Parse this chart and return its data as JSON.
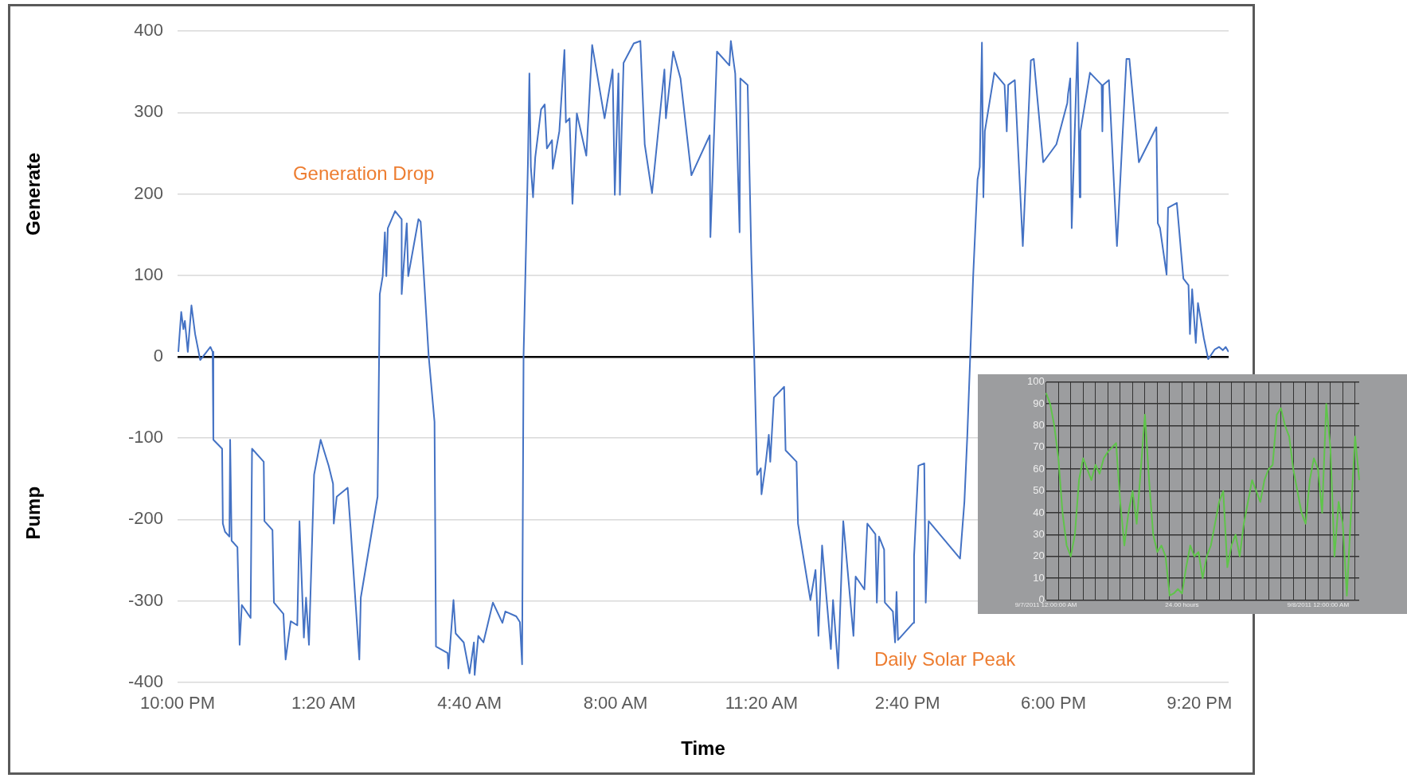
{
  "chart_data": [
    {
      "type": "line",
      "xlabel": "Time",
      "ylabel": "Generate",
      "xlim": [
        "2011-09-07T22:00",
        "2011-09-08T22:00"
      ],
      "ylim": [
        -400,
        400
      ],
      "xticks": [
        {
          "value": "2011-09-07T22:00",
          "label": "10:00 PM"
        },
        {
          "value": "2011-09-08T01:20",
          "label": "1:20 AM"
        },
        {
          "value": "2011-09-08T04:40",
          "label": "4:40 AM"
        },
        {
          "value": "2011-09-08T08:00",
          "label": "8:00 AM"
        },
        {
          "value": "2011-09-08T11:20",
          "label": "11:20 AM"
        },
        {
          "value": "2011-09-08T14:40",
          "label": "2:40 PM"
        },
        {
          "value": "2011-09-08T18:00",
          "label": "6:00 PM"
        },
        {
          "value": "2011-09-08T21:20",
          "label": "9:20 PM"
        }
      ],
      "yticks": [
        -400,
        -300,
        -200,
        -100,
        0,
        100,
        200,
        300,
        400
      ],
      "grid": "y",
      "marker": "none",
      "line_style": "solid",
      "annotations": [
        "Generation Drop",
        "Daily Solar Peak",
        "Pump"
      ],
      "series": [
        {
          "color": "#4472c4",
          "x": [
            "2011-09-07T22:01",
            "2011-09-07T22:05",
            "2011-09-07T22:08",
            "2011-09-07T22:10",
            "2011-09-07T22:14",
            "2011-09-07T22:19",
            "2011-09-07T22:24",
            "2011-09-07T22:31",
            "2011-09-07T22:45",
            "2011-09-07T22:48",
            "2011-09-07T22:49",
            "2011-09-07T23:01",
            "2011-09-07T23:02",
            "2011-09-07T23:05",
            "2011-09-07T23:11",
            "2011-09-07T23:12",
            "2011-09-07T23:14",
            "2011-09-07T23:22",
            "2011-09-07T23:25",
            "2011-09-07T23:28",
            "2011-09-07T23:40",
            "2011-09-07T23:42",
            "2011-09-07T23:58",
            "2011-09-07T23:59",
            "2011-09-08T00:10",
            "2011-09-08T00:12",
            "2011-09-08T00:25",
            "2011-09-08T00:28",
            "2011-09-08T00:35",
            "2011-09-08T00:44",
            "2011-09-08T00:47",
            "2011-09-08T00:53",
            "2011-09-08T00:56",
            "2011-09-08T01:00",
            "2011-09-08T01:07",
            "2011-09-08T01:16",
            "2011-09-08T01:27",
            "2011-09-08T01:33",
            "2011-09-08T01:34",
            "2011-09-08T01:38",
            "2011-09-08T01:53",
            "2011-09-08T01:57",
            "2011-09-08T02:09",
            "2011-09-08T02:11",
            "2011-09-08T02:34",
            "2011-09-08T02:37",
            "2011-09-08T02:41",
            "2011-09-08T02:44",
            "2011-09-08T02:46",
            "2011-09-08T02:48",
            "2011-09-08T02:58",
            "2011-09-08T03:07",
            "2011-09-08T03:07",
            "2011-09-08T03:14",
            "2011-09-08T03:16",
            "2011-09-08T03:30",
            "2011-09-08T03:33",
            "2011-09-08T03:44",
            "2011-09-08T03:52",
            "2011-09-08T03:54",
            "2011-09-08T04:10",
            "2011-09-08T04:11",
            "2011-09-08T04:18",
            "2011-09-08T04:21",
            "2011-09-08T04:32",
            "2011-09-08T04:40",
            "2011-09-08T04:46",
            "2011-09-08T04:47",
            "2011-09-08T04:52",
            "2011-09-08T04:59",
            "2011-09-08T05:12",
            "2011-09-08T05:25",
            "2011-09-08T05:29",
            "2011-09-08T05:44",
            "2011-09-08T05:49",
            "2011-09-08T05:52",
            "2011-09-08T05:54",
            "2011-09-08T06:00",
            "2011-09-08T06:02",
            "2011-09-08T06:04",
            "2011-09-08T06:07",
            "2011-09-08T06:10",
            "2011-09-08T06:18",
            "2011-09-08T06:23",
            "2011-09-08T06:26",
            "2011-09-08T06:33",
            "2011-09-08T06:34",
            "2011-09-08T06:43",
            "2011-09-08T06:50",
            "2011-09-08T06:52",
            "2011-09-08T06:57",
            "2011-09-08T07:01",
            "2011-09-08T07:07",
            "2011-09-08T07:20",
            "2011-09-08T07:28",
            "2011-09-08T07:45",
            "2011-09-08T07:56",
            "2011-09-08T07:59",
            "2011-09-08T08:04",
            "2011-09-08T08:06",
            "2011-09-08T08:11",
            "2011-09-08T08:25",
            "2011-09-08T08:34",
            "2011-09-08T08:40",
            "2011-09-08T08:50",
            "2011-09-08T09:07",
            "2011-09-08T09:09",
            "2011-09-08T09:19",
            "2011-09-08T09:29",
            "2011-09-08T09:44",
            "2011-09-08T10:09",
            "2011-09-08T10:10",
            "2011-09-08T10:19",
            "2011-09-08T10:36",
            "2011-09-08T10:38",
            "2011-09-08T10:44",
            "2011-09-08T10:50",
            "2011-09-08T10:51",
            "2011-09-08T11:01",
            "2011-09-08T11:06",
            "2011-09-08T11:10",
            "2011-09-08T11:14",
            "2011-09-08T11:19",
            "2011-09-08T11:20",
            "2011-09-08T11:25",
            "2011-09-08T11:30",
            "2011-09-08T11:32",
            "2011-09-08T11:37",
            "2011-09-08T11:51",
            "2011-09-08T11:53",
            "2011-09-08T12:08",
            "2011-09-08T12:10",
            "2011-09-08T12:27",
            "2011-09-08T12:34",
            "2011-09-08T12:38",
            "2011-09-08T12:43",
            "2011-09-08T12:55",
            "2011-09-08T12:58",
            "2011-09-08T13:05",
            "2011-09-08T13:12",
            "2011-09-08T13:26",
            "2011-09-08T13:29",
            "2011-09-08T13:41",
            "2011-09-08T13:45",
            "2011-09-08T13:56",
            "2011-09-08T13:58",
            "2011-09-08T14:01",
            "2011-09-08T14:08",
            "2011-09-08T14:09",
            "2011-09-08T14:20",
            "2011-09-08T14:23",
            "2011-09-08T14:25",
            "2011-09-08T14:27",
            "2011-09-08T14:48",
            "2011-09-08T14:49",
            "2011-09-08T14:55",
            "2011-09-08T15:03",
            "2011-09-08T15:05",
            "2011-09-08T15:09",
            "2011-09-08T15:52",
            "2011-09-08T15:58",
            "2011-09-08T16:02",
            "2011-09-08T16:10",
            "2011-09-08T16:16",
            "2011-09-08T16:19",
            "2011-09-08T16:22",
            "2011-09-08T16:24",
            "2011-09-08T16:26",
            "2011-09-08T16:39",
            "2011-09-08T16:53",
            "2011-09-08T16:56",
            "2011-09-08T16:58",
            "2011-09-08T17:07",
            "2011-09-08T17:18",
            "2011-09-08T17:29",
            "2011-09-08T17:33",
            "2011-09-08T17:46",
            "2011-09-08T18:04",
            "2011-09-08T18:19",
            "2011-09-08T18:20",
            "2011-09-08T18:23",
            "2011-09-08T18:25",
            "2011-09-08T18:33",
            "2011-09-08T18:36",
            "2011-09-08T18:37",
            "2011-09-08T18:50",
            "2011-09-08T19:06",
            "2011-09-08T19:07",
            "2011-09-08T19:08",
            "2011-09-08T19:16",
            "2011-09-08T19:27",
            "2011-09-08T19:40",
            "2011-09-08T19:44",
            "2011-09-08T19:57",
            "2011-09-08T20:21",
            "2011-09-08T20:23",
            "2011-09-08T20:26",
            "2011-09-08T20:35",
            "2011-09-08T20:37",
            "2011-09-08T20:49",
            "2011-09-08T20:58",
            "2011-09-08T21:05",
            "2011-09-08T21:07",
            "2011-09-08T21:10",
            "2011-09-08T21:15",
            "2011-09-08T21:18",
            "2011-09-08T21:26",
            "2011-09-08T21:32",
            "2011-09-08T21:41",
            "2011-09-08T21:47",
            "2011-09-08T21:52",
            "2011-09-08T21:56",
            "2011-09-08T22:00"
          ],
          "values": [
            6,
            55,
            34,
            44,
            6,
            63,
            28,
            -4,
            12,
            6,
            -102,
            -113,
            -205,
            -215,
            -221,
            -102,
            -226,
            -234,
            -354,
            -305,
            -321,
            -113,
            -129,
            -202,
            -213,
            -302,
            -316,
            -372,
            -325,
            -330,
            -202,
            -345,
            -296,
            -354,
            -145,
            -102,
            -134,
            -156,
            -205,
            -172,
            -161,
            -210,
            -372,
            -296,
            -172,
            77,
            99,
            153,
            99,
            158,
            179,
            169,
            77,
            164,
            99,
            169,
            166,
            1,
            -80,
            -356,
            -364,
            -383,
            -299,
            -340,
            -351,
            -389,
            -351,
            -391,
            -343,
            -351,
            -302,
            -327,
            -313,
            -319,
            -326,
            -378,
            1,
            239,
            348,
            233,
            196,
            245,
            304,
            310,
            256,
            266,
            231,
            277,
            377,
            288,
            293,
            188,
            299,
            247,
            383,
            293,
            353,
            199,
            348,
            199,
            361,
            385,
            388,
            261,
            201,
            353,
            293,
            375,
            342,
            223,
            272,
            147,
            375,
            358,
            388,
            348,
            153,
            342,
            334,
            126,
            1,
            -145,
            -137,
            -169,
            -137,
            -96,
            -129,
            -50,
            -37,
            -115,
            -129,
            -205,
            -299,
            -262,
            -343,
            -232,
            -359,
            -299,
            -383,
            -202,
            -343,
            -270,
            -286,
            -205,
            -218,
            -302,
            -221,
            -237,
            -302,
            -313,
            -351,
            -289,
            -348,
            -327,
            -245,
            -134,
            -131,
            -302,
            -202,
            -248,
            -178,
            -96,
            99,
            218,
            233,
            386,
            196,
            277,
            349,
            334,
            277,
            334,
            340,
            136,
            364,
            366,
            239,
            261,
            312,
            323,
            342,
            158,
            386,
            196,
            277,
            349,
            334,
            277,
            334,
            340,
            136,
            366,
            366,
            239,
            282,
            164,
            158,
            101,
            183,
            189,
            96,
            88,
            28,
            83,
            17,
            66,
            23,
            -3,
            9,
            12,
            8,
            12,
            6
          ]
        }
      ]
    },
    {
      "type": "line",
      "ylim": [
        0,
        100
      ],
      "categories": [
        "9/7/2011 12:00:00 AM",
        null,
        null,
        null,
        null,
        null,
        null,
        null,
        null,
        null,
        null,
        null,
        null,
        null,
        null,
        null,
        null,
        null,
        null,
        null,
        null,
        null,
        null,
        null,
        null,
        null,
        null,
        null,
        null,
        null,
        null,
        null,
        null,
        "24.00 hours",
        null,
        null,
        null,
        null,
        null,
        null,
        null,
        null,
        null,
        null,
        null,
        null,
        null,
        null,
        null,
        null,
        null,
        null,
        null,
        null,
        null,
        null,
        null,
        null,
        null,
        null,
        null,
        null,
        null,
        null,
        null,
        null,
        "9/8/2011 12:00:00 AM",
        null,
        null,
        null,
        null,
        null,
        null,
        null,
        null,
        null,
        null
      ],
      "yticks": [
        0,
        10,
        20,
        30,
        40,
        50,
        60,
        70,
        80,
        90,
        100
      ],
      "grid": true,
      "marker": "none",
      "line_style": "solid",
      "series": [
        {
          "color": "#5fc44a",
          "values": [
            95,
            90,
            80,
            65,
            40,
            25,
            20,
            30,
            55,
            65,
            60,
            55,
            62,
            58,
            65,
            68,
            70,
            72,
            45,
            25,
            40,
            50,
            35,
            60,
            85,
            55,
            30,
            22,
            25,
            20,
            2,
            3,
            5,
            3,
            15,
            25,
            20,
            22,
            10,
            20,
            25,
            35,
            45,
            50,
            15,
            25,
            30,
            20,
            35,
            45,
            55,
            50,
            45,
            55,
            60,
            62,
            85,
            88,
            80,
            75,
            60,
            50,
            40,
            35,
            55,
            65,
            60,
            40,
            90,
            70,
            20,
            45,
            35,
            2,
            40,
            75,
            55
          ]
        }
      ]
    }
  ]
}
